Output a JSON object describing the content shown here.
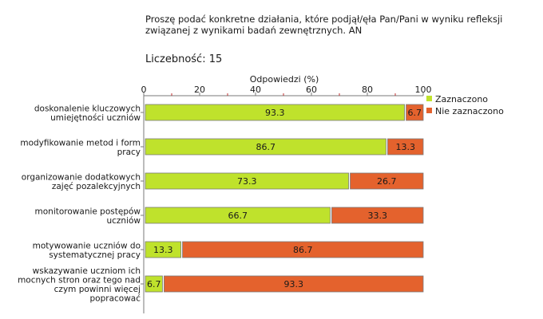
{
  "header": {
    "title": "Proszę podać konkretne działania, które podjął/ęła Pan/Pani w wyniku refleksji związanej z wynikami badań zewnętrznych. AN",
    "count_label": "Liczebność:",
    "count_value": "15"
  },
  "chart_data": {
    "type": "bar",
    "orientation": "horizontal",
    "stacked": true,
    "xlabel": "Odpowiedzi (%)",
    "xlim": [
      0,
      100
    ],
    "xticks": [
      0,
      20,
      40,
      60,
      80,
      100
    ],
    "legend_position": "right",
    "categories": [
      "doskonalenie kluczowych umiejętności uczniów",
      "modyfikowanie metod i form pracy",
      "organizowanie dodatkowych zajęć pozalekcyjnych",
      "monitorowanie postępów uczniów",
      "motywowanie uczniów do systematycznej pracy",
      "wskazywanie uczniom ich mocnych stron oraz tego nad czym powinni więcej popracować"
    ],
    "category_lines": [
      [
        "doskonalenie kluczowych",
        "umiejętności uczniów"
      ],
      [
        "modyfikowanie metod i form",
        "pracy"
      ],
      [
        "organizowanie dodatkowych",
        "zajęć pozalekcyjnych"
      ],
      [
        "monitorowanie postępów",
        "uczniów"
      ],
      [
        "motywowanie uczniów do",
        "systematycznej pracy"
      ],
      [
        "wskazywanie uczniom ich",
        "mocnych stron oraz tego nad",
        "czym powinni więcej",
        "popracować"
      ]
    ],
    "series": [
      {
        "name": "Zaznaczono",
        "color": "#bfe22c",
        "values": [
          93.3,
          86.7,
          73.3,
          66.7,
          13.3,
          6.7
        ]
      },
      {
        "name": "Nie zaznaczono",
        "color": "#e4622d",
        "values": [
          6.7,
          13.3,
          26.7,
          33.3,
          86.7,
          93.3
        ]
      }
    ]
  }
}
